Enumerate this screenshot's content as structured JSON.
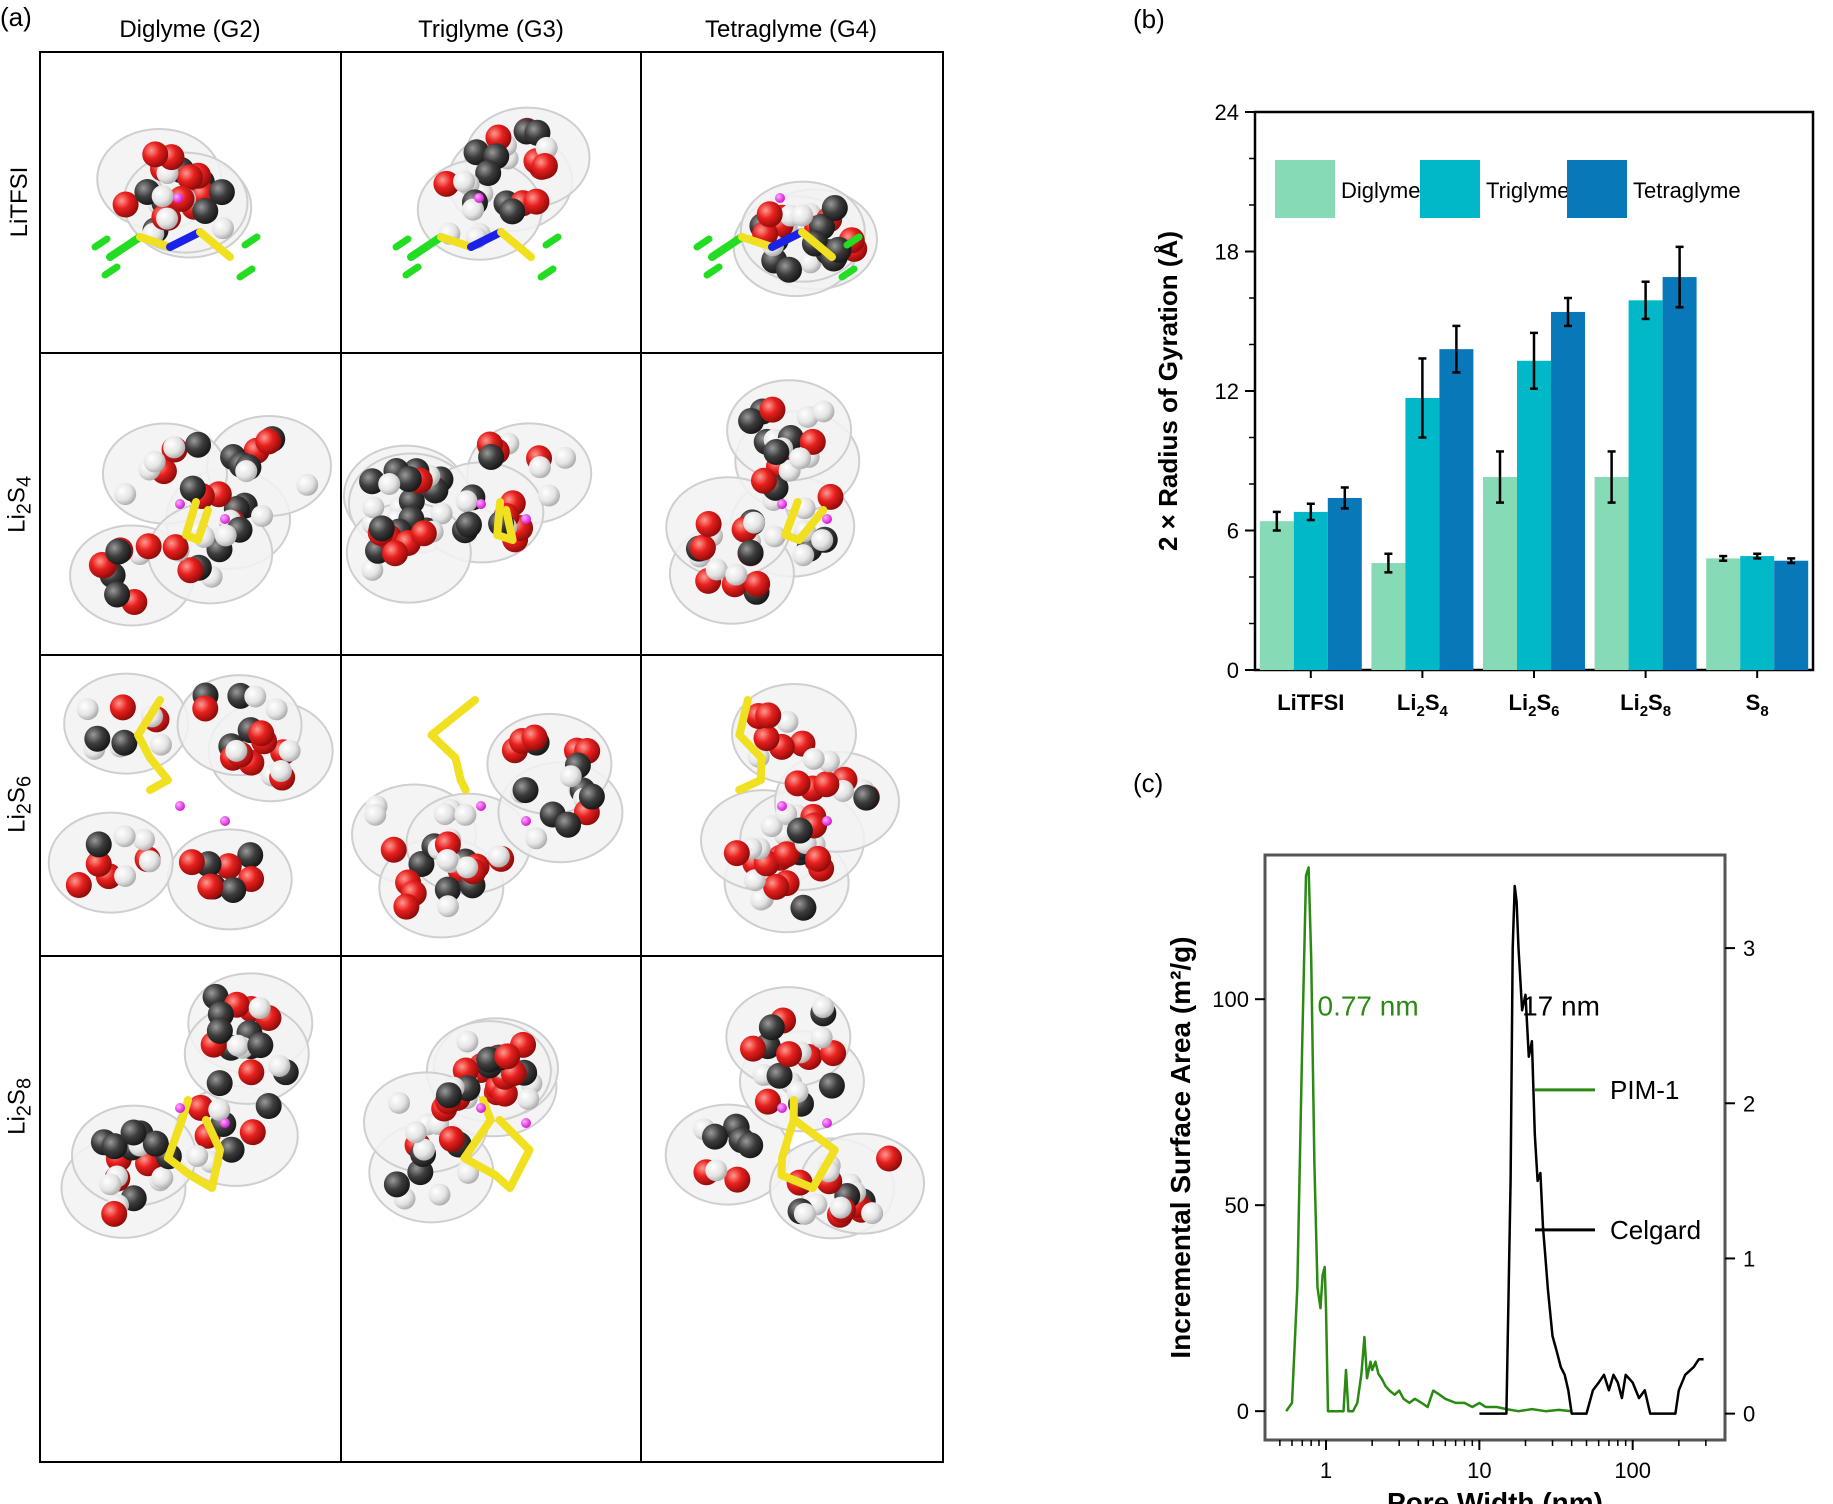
{
  "panel_a": {
    "letter": "(a)",
    "columns": [
      "Diglyme (G2)",
      "Triglyme (G3)",
      "Tetraglyme (G4)"
    ],
    "rows": [
      {
        "main": "LiTFSI",
        "sub": "",
        "tail": "",
        "sub2": ""
      },
      {
        "main": "Li",
        "sub": "2",
        "tail": "S",
        "sub2": "4"
      },
      {
        "main": "Li",
        "sub": "2",
        "tail": "S",
        "sub2": "6"
      },
      {
        "main": "Li",
        "sub": "2",
        "tail": "S",
        "sub2": "8"
      }
    ],
    "atom_colors": {
      "oxygen": "#e8201e",
      "carbon": "#3c3c3c",
      "hydrogen": "#e4e4e4",
      "lithium": "#ee22ee",
      "sulfur": "#f0e020",
      "fluorine": "#22dd22",
      "nitrogen": "#1a22e8"
    }
  },
  "chart_data": [
    {
      "type": "bar",
      "panel_letter": "(b)",
      "ylabel": "2 × Radius of Gyration (Å)",
      "ylim": [
        0,
        24
      ],
      "yticks": [
        0,
        6,
        12,
        18,
        24
      ],
      "categories": [
        "LiTFSI",
        "Li2S4",
        "Li2S6",
        "Li2S8",
        "S8"
      ],
      "category_parts": [
        {
          "a": "LiTFSI",
          "b": "",
          "c": "",
          "d": ""
        },
        {
          "a": "Li",
          "b": "2",
          "c": "S",
          "d": "4"
        },
        {
          "a": "Li",
          "b": "2",
          "c": "S",
          "d": "6"
        },
        {
          "a": "Li",
          "b": "2",
          "c": "S",
          "d": "8"
        },
        {
          "a": "S",
          "b": "8",
          "c": "",
          "d": ""
        }
      ],
      "series": [
        {
          "name": "Diglyme",
          "color": "#86dab5",
          "values": [
            6.4,
            4.6,
            8.3,
            8.3,
            4.8
          ],
          "errors": [
            0.4,
            0.4,
            1.1,
            1.1,
            0.1
          ]
        },
        {
          "name": "Triglyme",
          "color": "#00b8c8",
          "values": [
            6.8,
            11.7,
            13.3,
            15.9,
            4.9
          ],
          "errors": [
            0.35,
            1.7,
            1.2,
            0.8,
            0.1
          ]
        },
        {
          "name": "Tetraglyme",
          "color": "#0878b8",
          "values": [
            7.4,
            13.8,
            15.4,
            16.9,
            4.7
          ],
          "errors": [
            0.45,
            1.0,
            0.6,
            1.3,
            0.1
          ]
        }
      ],
      "legend": "top"
    },
    {
      "type": "line",
      "panel_letter": "(c)",
      "xlabel": "Pore Width (nm)",
      "ylabel": "Incremental Surface Area (m²/g)",
      "xscale": "log",
      "xlim": [
        0.4,
        400
      ],
      "xticks": [
        1,
        10,
        100
      ],
      "ylim": [
        -7,
        135
      ],
      "yticks": [
        0,
        50,
        100
      ],
      "y2lim": [
        -0.17,
        3.6
      ],
      "y2ticks": [
        0,
        1,
        2,
        3
      ],
      "legend": "right",
      "annotations": [
        {
          "text": "0.77 nm",
          "color": "#2a8a14"
        },
        {
          "text": "17 nm",
          "color": "#000000"
        }
      ],
      "series": [
        {
          "name": "PIM-1",
          "color": "#2a8a14",
          "axis": "left",
          "x": [
            0.55,
            0.6,
            0.65,
            0.7,
            0.74,
            0.77,
            0.8,
            0.84,
            0.88,
            0.92,
            0.95,
            0.98,
            1.0,
            1.03,
            1.1,
            1.2,
            1.3,
            1.35,
            1.4,
            1.5,
            1.6,
            1.7,
            1.78,
            1.85,
            1.95,
            2.0,
            2.1,
            2.2,
            2.3,
            2.45,
            2.6,
            2.8,
            3.0,
            3.2,
            3.5,
            3.8,
            4.2,
            4.6,
            5.0,
            5.5,
            6.0,
            7.0,
            8.0,
            9.0,
            10.0,
            11.0,
            13.0,
            15.0,
            18.0,
            22.0,
            27.0,
            33.0,
            40.0
          ],
          "y": [
            0,
            2,
            30,
            90,
            130,
            132,
            110,
            60,
            30,
            25,
            33,
            35,
            25,
            0,
            0,
            0,
            0,
            10,
            0,
            0,
            2,
            9,
            18,
            8,
            12,
            10,
            12,
            9,
            8,
            6,
            5,
            4,
            5,
            3,
            2,
            3,
            2,
            1,
            5,
            4,
            3,
            2,
            2,
            1,
            2,
            1,
            1,
            0.5,
            0,
            0.5,
            0,
            0.3,
            0
          ]
        },
        {
          "name": "Celgard",
          "color": "#000000",
          "axis": "right",
          "x": [
            10.0,
            13.0,
            15.0,
            16.0,
            16.5,
            17.0,
            17.5,
            18.0,
            19.0,
            20.0,
            21.0,
            22.0,
            23.0,
            24.0,
            25.0,
            26.0,
            27.0,
            28.0,
            30.0,
            32.0,
            34.0,
            36.0,
            38.0,
            40.0,
            50.0,
            55.0,
            60.0,
            65.0,
            70.0,
            75.0,
            80.0,
            85.0,
            90.0,
            100.0,
            110.0,
            120.0,
            130.0,
            150.0,
            170.0,
            190.0,
            200.0,
            220.0,
            250.0,
            270.0,
            290.0
          ],
          "y": [
            0,
            0,
            0,
            1.5,
            3.0,
            3.4,
            3.3,
            3.0,
            2.6,
            2.7,
            2.3,
            2.4,
            1.8,
            1.5,
            1.55,
            1.2,
            1.0,
            0.8,
            0.5,
            0.4,
            0.3,
            0.25,
            0.15,
            0,
            0,
            0.15,
            0.2,
            0.25,
            0.15,
            0.25,
            0.2,
            0.1,
            0.25,
            0.2,
            0.1,
            0.15,
            0,
            0,
            0,
            0,
            0.15,
            0.25,
            0.3,
            0.35,
            0.35
          ]
        }
      ]
    }
  ]
}
